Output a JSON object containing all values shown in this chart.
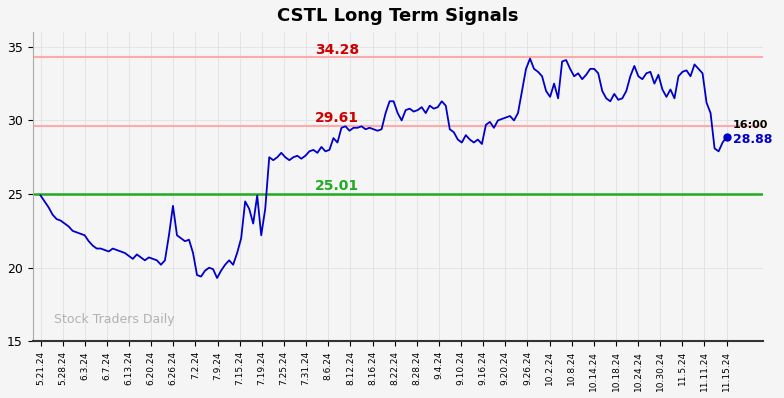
{
  "title": "CSTL Long Term Signals",
  "watermark": "Stock Traders Daily",
  "hline_green": 25.01,
  "hline_red1": 29.61,
  "hline_red2": 34.28,
  "label_green": "25.01",
  "label_red1": "29.61",
  "label_red2": "34.28",
  "last_label": "16:00",
  "last_value": "28.88",
  "last_price": 28.88,
  "ylim": [
    15,
    36
  ],
  "yticks": [
    15,
    20,
    25,
    30,
    35
  ],
  "line_color": "#0000cc",
  "green_color": "#22aa22",
  "red_line_color": "#ffaaaa",
  "red_color": "#cc0000",
  "background_color": "#f5f5f5",
  "grid_color": "#dddddd",
  "x_labels": [
    "5.21.24",
    "5.28.24",
    "6.3.24",
    "6.7.24",
    "6.13.24",
    "6.20.24",
    "6.26.24",
    "7.2.24",
    "7.9.24",
    "7.15.24",
    "7.19.24",
    "7.25.24",
    "7.31.24",
    "8.6.24",
    "8.12.24",
    "8.16.24",
    "8.22.24",
    "8.28.24",
    "9.4.24",
    "9.10.24",
    "9.16.24",
    "9.20.24",
    "9.26.24",
    "10.2.24",
    "10.8.24",
    "10.14.24",
    "10.18.24",
    "10.24.24",
    "10.30.24",
    "11.5.24",
    "11.11.24",
    "11.15.24"
  ],
  "prices": [
    24.9,
    24.5,
    24.1,
    23.6,
    23.3,
    23.2,
    23.0,
    22.8,
    22.5,
    22.4,
    22.3,
    22.2,
    21.8,
    21.5,
    21.3,
    21.3,
    21.2,
    21.1,
    21.3,
    21.2,
    21.1,
    21.0,
    20.8,
    20.6,
    20.9,
    20.7,
    20.5,
    20.7,
    20.6,
    20.5,
    20.2,
    20.5,
    22.2,
    24.2,
    22.2,
    22.0,
    21.8,
    21.9,
    21.0,
    19.5,
    19.4,
    19.8,
    20.0,
    19.9,
    19.3,
    19.8,
    20.2,
    20.5,
    20.2,
    21.0,
    22.0,
    24.5,
    24.0,
    23.0,
    24.9,
    22.2,
    24.0,
    27.5,
    27.3,
    27.5,
    27.8,
    27.5,
    27.3,
    27.5,
    27.6,
    27.4,
    27.6,
    27.9,
    28.0,
    27.8,
    28.2,
    27.9,
    28.0,
    28.8,
    28.5,
    29.5,
    29.6,
    29.3,
    29.5,
    29.5,
    29.6,
    29.4,
    29.5,
    29.4,
    29.3,
    29.4,
    30.5,
    31.3,
    31.3,
    30.5,
    30.0,
    30.7,
    30.8,
    30.6,
    30.7,
    30.9,
    30.5,
    31.0,
    30.8,
    30.9,
    31.3,
    31.0,
    29.4,
    29.2,
    28.7,
    28.5,
    29.0,
    28.7,
    28.5,
    28.7,
    28.4,
    29.7,
    29.9,
    29.5,
    30.0,
    30.1,
    30.2,
    30.3,
    30.0,
    30.5,
    32.0,
    33.5,
    34.2,
    33.5,
    33.3,
    33.0,
    32.0,
    31.6,
    32.5,
    31.5,
    34.0,
    34.1,
    33.5,
    33.0,
    33.2,
    32.8,
    33.1,
    33.5,
    33.5,
    33.2,
    32.0,
    31.5,
    31.3,
    31.8,
    31.4,
    31.5,
    32.0,
    33.0,
    33.7,
    33.0,
    32.8,
    33.2,
    33.3,
    32.5,
    33.1,
    32.1,
    31.6,
    32.1,
    31.5,
    33.0,
    33.3,
    33.4,
    33.0,
    33.8,
    33.5,
    33.2,
    31.2,
    30.5,
    28.1,
    27.9,
    28.5,
    28.88
  ]
}
